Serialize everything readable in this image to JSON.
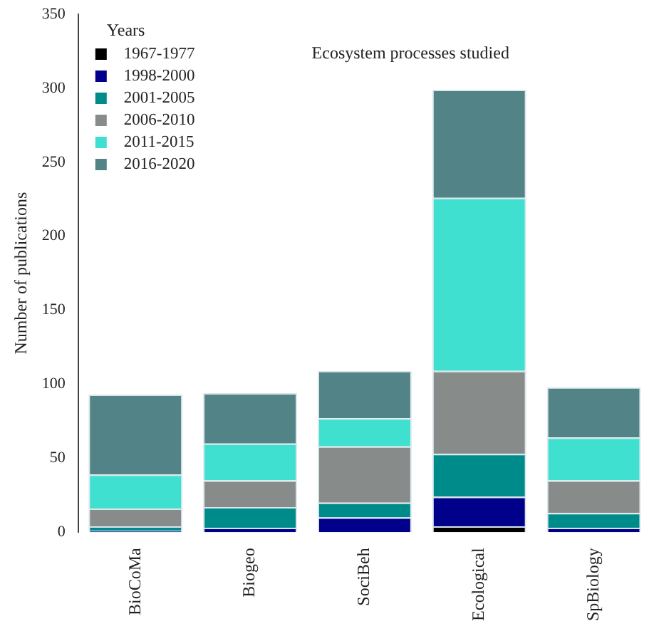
{
  "chart_data": {
    "type": "bar",
    "title": "Ecosystem processes studied",
    "ylabel": "Number of publications",
    "legend_title": "Years",
    "categories": [
      "BioCoMa",
      "Biogeo",
      "SociBeh",
      "Ecological",
      "SpBiology"
    ],
    "stacked": true,
    "legend": "top left",
    "grid": false,
    "ylim": [
      0,
      350
    ],
    "yticks": [
      0,
      50,
      100,
      150,
      200,
      250,
      300,
      350
    ],
    "series": [
      {
        "name": "1967-1977",
        "color": "#000000",
        "values": [
          0,
          0,
          0,
          4,
          0
        ]
      },
      {
        "name": "1998-2000",
        "color": "#00008b",
        "values": [
          1,
          3,
          10,
          20,
          3
        ]
      },
      {
        "name": "2001-2005",
        "color": "#008b8b",
        "values": [
          3,
          14,
          10,
          29,
          10
        ]
      },
      {
        "name": "2006-2010",
        "color": "#878c8a",
        "values": [
          12,
          18,
          38,
          56,
          22
        ]
      },
      {
        "name": "2011-2015",
        "color": "#40e0d0",
        "values": [
          23,
          25,
          19,
          117,
          29
        ]
      },
      {
        "name": "2016-2020",
        "color": "#528387",
        "values": [
          54,
          34,
          32,
          73,
          34
        ]
      }
    ]
  }
}
